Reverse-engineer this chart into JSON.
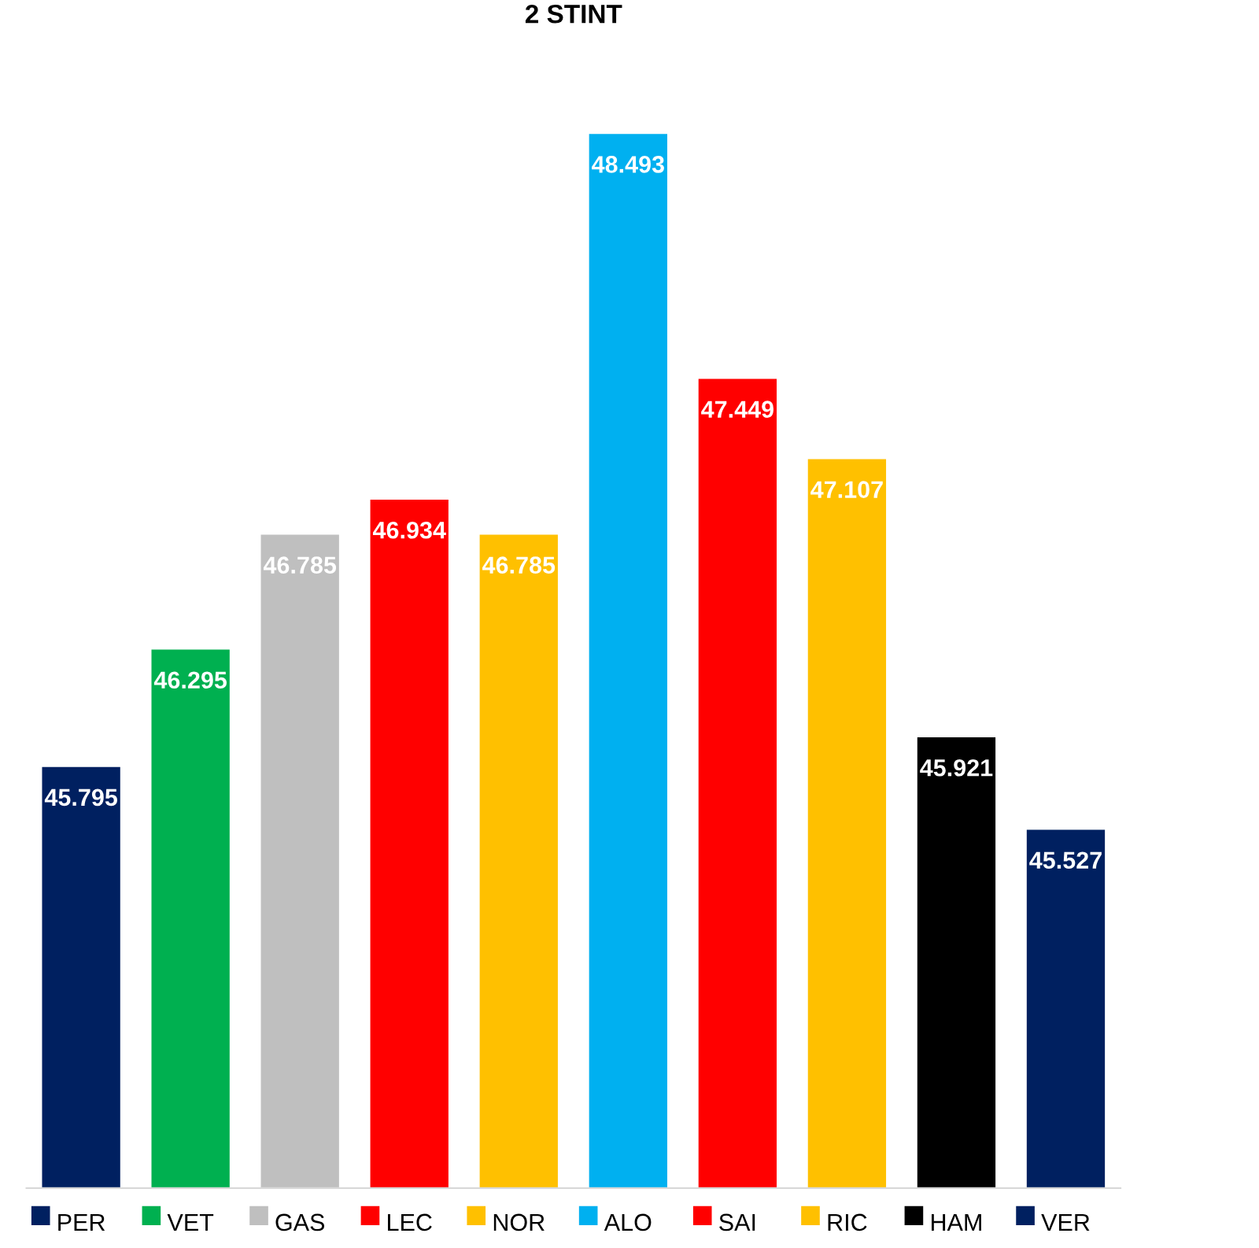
{
  "chart_data": {
    "type": "bar",
    "title": "2 STINT",
    "categories": [
      "PER",
      "VET",
      "GAS",
      "LEC",
      "NOR",
      "ALO",
      "SAI",
      "RIC",
      "HAM",
      "VER"
    ],
    "values": [
      45.795,
      46.295,
      46.785,
      46.934,
      46.785,
      48.493,
      47.449,
      47.107,
      45.921,
      45.527
    ],
    "colors": [
      "#002060",
      "#00b050",
      "#bfbfbf",
      "#ff0000",
      "#ffc000",
      "#00b0f0",
      "#ff0000",
      "#ffc000",
      "#000000",
      "#002060"
    ],
    "ylim": [
      44,
      48.5
    ],
    "tick_labels": "x",
    "data_labels": true
  }
}
